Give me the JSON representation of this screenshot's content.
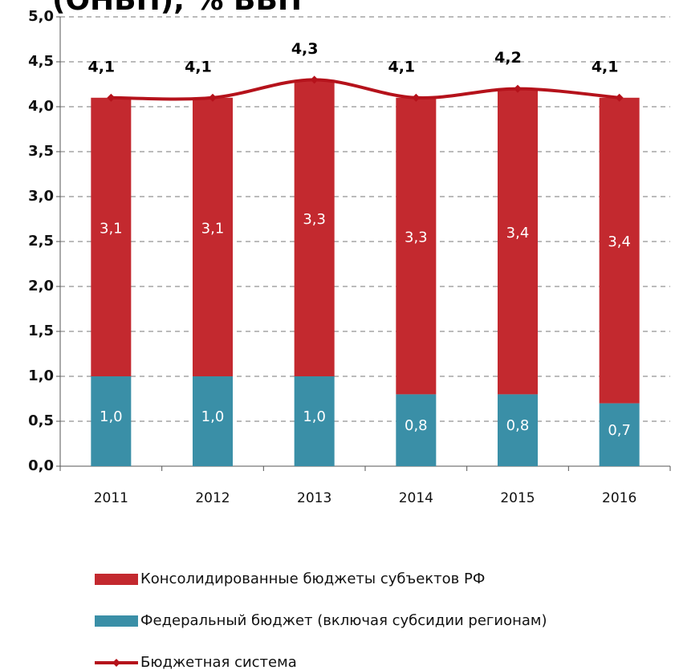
{
  "chart_data": {
    "type": "bar",
    "title": "(ОНБП), % ВВП",
    "categories": [
      "2011",
      "2012",
      "2013",
      "2014",
      "2015",
      "2016"
    ],
    "series": [
      {
        "name": "Федеральный бюджет (включая субсидии регионам)",
        "color": "#3a8fa7",
        "type": "bar",
        "values": [
          1.0,
          1.0,
          1.0,
          0.8,
          0.8,
          0.7
        ],
        "value_labels": [
          "1,0",
          "1,0",
          "1,0",
          "0,8",
          "0,8",
          "0,7"
        ]
      },
      {
        "name": "Консолидированные бюджеты субъектов РФ",
        "color": "#c3292f",
        "type": "bar",
        "values": [
          3.1,
          3.1,
          3.3,
          3.3,
          3.4,
          3.4
        ],
        "value_labels": [
          "3,1",
          "3,1",
          "3,3",
          "3,3",
          "3,4",
          "3,4"
        ]
      },
      {
        "name": "Бюджетная система",
        "color": "#b5121b",
        "type": "line",
        "values": [
          4.1,
          4.1,
          4.3,
          4.1,
          4.2,
          4.1
        ],
        "value_labels": [
          "4,1",
          "4,1",
          "4,3",
          "4,1",
          "4,2",
          "4,1"
        ]
      }
    ],
    "stacked": true,
    "ylim": [
      0,
      5
    ],
    "yticks": [
      {
        "value": 0,
        "label": "0,0"
      },
      {
        "value": 0.5,
        "label": "0,5"
      },
      {
        "value": 1,
        "label": "1,0"
      },
      {
        "value": 1.5,
        "label": "1,5"
      },
      {
        "value": 2,
        "label": "2,0"
      },
      {
        "value": 2.5,
        "label": "2,5"
      },
      {
        "value": 3,
        "label": "3,0"
      },
      {
        "value": 3.5,
        "label": "3,5"
      },
      {
        "value": 4,
        "label": "4,0"
      },
      {
        "value": 4.5,
        "label": "4,5"
      },
      {
        "value": 5,
        "label": "5,0"
      }
    ],
    "grid": true,
    "legend": "bottom"
  }
}
